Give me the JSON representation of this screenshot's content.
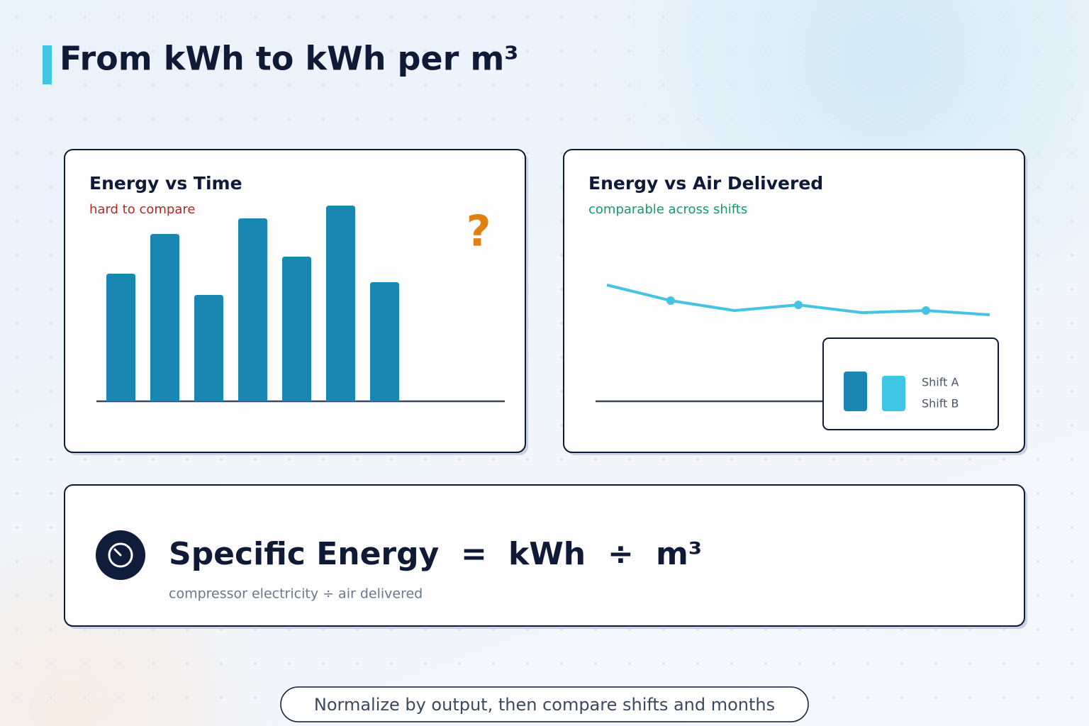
{
  "title": "From kWh to kWh per m³",
  "chart_data": [
    {
      "type": "bar",
      "title": "Energy vs Time",
      "subtitle": "hard to compare",
      "annotation": "?",
      "values": [
        180,
        236,
        150,
        258,
        204,
        276,
        168
      ],
      "color": "#1a87b3",
      "ylim": [
        0,
        300
      ]
    },
    {
      "type": "line",
      "title": "Energy vs Air Delivered",
      "subtitle": "comparable across shifts",
      "series": [
        {
          "values": [
            164,
            142,
            128,
            136,
            125,
            128,
            122
          ],
          "color": "#45c3e0"
        }
      ],
      "markers": [
        1,
        3,
        5
      ],
      "ylim": [
        0,
        300
      ],
      "legend": [
        {
          "name": "Shift A",
          "color": "#1a87b3"
        },
        {
          "name": "Shift B",
          "color": "#3ec6e4"
        }
      ]
    }
  ],
  "formula": {
    "name": "Specific Energy",
    "equals": "=",
    "numerator": "kWh",
    "divide": "÷",
    "denominator": "m³",
    "caption": "compressor electricity ÷ air delivered"
  },
  "footer": "Normalize by output, then compare shifts and months"
}
